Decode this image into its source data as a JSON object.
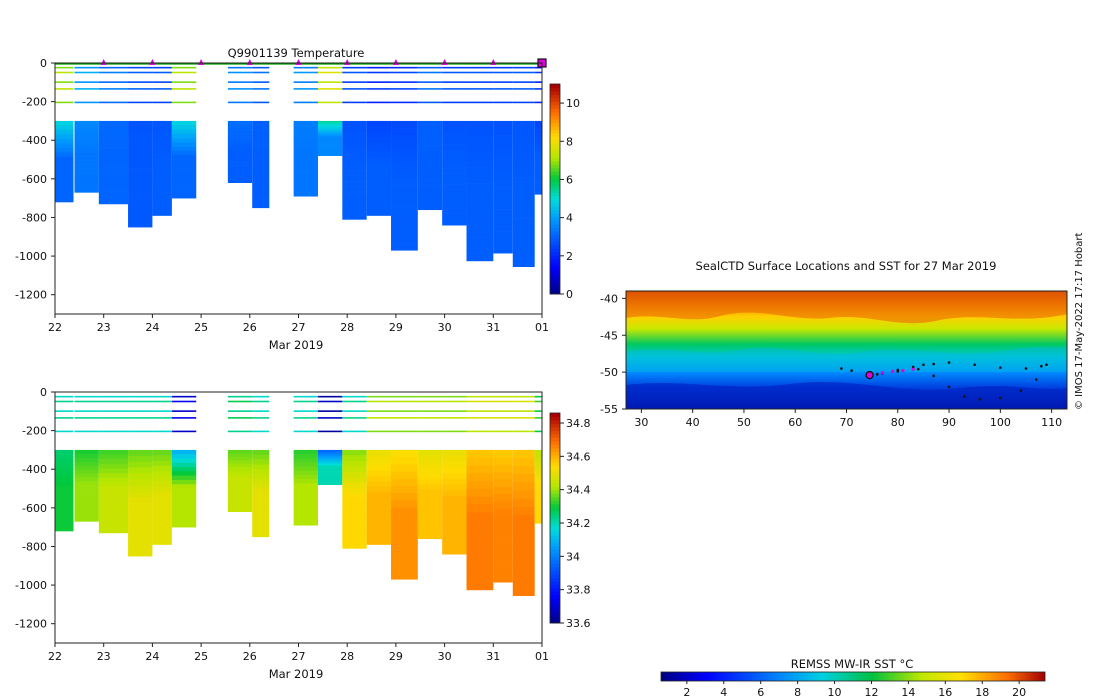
{
  "chart_data": [
    {
      "type": "heatmap",
      "title": "Q9901139  Temperature",
      "xlabel": "Mar 2019",
      "xticks": [
        "22",
        "23",
        "24",
        "25",
        "26",
        "27",
        "28",
        "29",
        "30",
        "31",
        "01"
      ],
      "xlim": [
        22,
        32
      ],
      "ylim": [
        -1300,
        0
      ],
      "yticks": [
        0,
        -200,
        -400,
        -600,
        -800,
        -1000,
        -1200
      ],
      "colorbar": {
        "ticks": [
          0,
          2,
          4,
          6,
          8,
          10
        ],
        "range": [
          0,
          11
        ]
      },
      "profiles": [
        {
          "day": 22.0,
          "width": 0.38,
          "max_depth": 720,
          "deep_value": 3.0,
          "surface_value": 7.0
        },
        {
          "day": 22.4,
          "width": 0.5,
          "max_depth": 670,
          "deep_value": 3.3,
          "surface_value": 4.0
        },
        {
          "day": 22.9,
          "width": 0.6,
          "max_depth": 730,
          "deep_value": 3.0,
          "surface_value": 3.2
        },
        {
          "day": 23.5,
          "width": 0.5,
          "max_depth": 850,
          "deep_value": 2.8,
          "surface_value": 2.7
        },
        {
          "day": 24.0,
          "width": 0.4,
          "max_depth": 790,
          "deep_value": 2.9,
          "surface_value": 2.6
        },
        {
          "day": 24.4,
          "width": 0.5,
          "max_depth": 700,
          "deep_value": 3.0,
          "surface_value": 7.0
        },
        {
          "day": 25.55,
          "width": 0.5,
          "max_depth": 620,
          "deep_value": 2.9,
          "surface_value": 3.5
        },
        {
          "day": 26.05,
          "width": 0.35,
          "max_depth": 750,
          "deep_value": 2.9,
          "surface_value": 3.0
        },
        {
          "day": 26.9,
          "width": 0.5,
          "max_depth": 690,
          "deep_value": 3.3,
          "surface_value": 3.6
        },
        {
          "day": 27.4,
          "width": 0.5,
          "max_depth": 480,
          "deep_value": 3.6,
          "surface_value": 7.5
        },
        {
          "day": 27.9,
          "width": 0.5,
          "max_depth": 810,
          "deep_value": 2.9,
          "surface_value": 2.5
        },
        {
          "day": 28.4,
          "width": 0.5,
          "max_depth": 790,
          "deep_value": 2.9,
          "surface_value": 2.0
        },
        {
          "day": 28.9,
          "width": 0.55,
          "max_depth": 970,
          "deep_value": 2.9,
          "surface_value": 2.2
        },
        {
          "day": 29.45,
          "width": 0.5,
          "max_depth": 760,
          "deep_value": 2.9,
          "surface_value": 3.0
        },
        {
          "day": 29.95,
          "width": 0.5,
          "max_depth": 840,
          "deep_value": 2.9,
          "surface_value": 2.5
        },
        {
          "day": 30.45,
          "width": 0.55,
          "max_depth": 1025,
          "deep_value": 2.9,
          "surface_value": 2.5
        },
        {
          "day": 31.0,
          "width": 0.4,
          "max_depth": 985,
          "deep_value": 2.9,
          "surface_value": 2.5
        },
        {
          "day": 31.4,
          "width": 0.45,
          "max_depth": 1055,
          "deep_value": 2.9,
          "surface_value": 2.6
        },
        {
          "day": 31.85,
          "width": 0.2,
          "max_depth": 680,
          "deep_value": 2.9,
          "surface_value": 2.0
        }
      ],
      "marker_days": [
        23,
        24,
        25,
        26,
        27,
        28,
        29,
        30,
        31
      ],
      "current_day": 32
    },
    {
      "type": "heatmap",
      "title": "",
      "xlabel": "Mar 2019",
      "xticks": [
        "22",
        "23",
        "24",
        "25",
        "26",
        "27",
        "28",
        "29",
        "30",
        "31",
        "01"
      ],
      "xlim": [
        22,
        32
      ],
      "ylim": [
        -1300,
        0
      ],
      "yticks": [
        0,
        -200,
        -400,
        -600,
        -800,
        -1000,
        -1200
      ],
      "colorbar": {
        "ticks": [
          33.6,
          33.8,
          34,
          34.2,
          34.4,
          34.6,
          34.8
        ],
        "range": [
          33.6,
          34.86
        ]
      },
      "profiles": [
        {
          "day": 22.0,
          "width": 0.38,
          "max_depth": 720,
          "deep_value": 34.3,
          "surface_value": 34.2
        },
        {
          "day": 22.4,
          "width": 0.5,
          "max_depth": 670,
          "deep_value": 34.4,
          "surface_value": 34.2
        },
        {
          "day": 22.9,
          "width": 0.6,
          "max_depth": 730,
          "deep_value": 34.45,
          "surface_value": 34.2
        },
        {
          "day": 23.5,
          "width": 0.5,
          "max_depth": 850,
          "deep_value": 34.5,
          "surface_value": 34.2
        },
        {
          "day": 24.0,
          "width": 0.4,
          "max_depth": 790,
          "deep_value": 34.5,
          "surface_value": 34.2
        },
        {
          "day": 24.4,
          "width": 0.5,
          "max_depth": 700,
          "deep_value": 34.42,
          "surface_value": 33.7
        },
        {
          "day": 25.55,
          "width": 0.5,
          "max_depth": 620,
          "deep_value": 34.45,
          "surface_value": 34.25
        },
        {
          "day": 26.05,
          "width": 0.35,
          "max_depth": 750,
          "deep_value": 34.5,
          "surface_value": 34.2
        },
        {
          "day": 26.9,
          "width": 0.5,
          "max_depth": 690,
          "deep_value": 34.42,
          "surface_value": 34.2
        },
        {
          "day": 27.4,
          "width": 0.5,
          "max_depth": 480,
          "deep_value": 34.2,
          "surface_value": 33.65
        },
        {
          "day": 27.9,
          "width": 0.5,
          "max_depth": 810,
          "deep_value": 34.55,
          "surface_value": 34.2
        },
        {
          "day": 28.4,
          "width": 0.5,
          "max_depth": 790,
          "deep_value": 34.6,
          "surface_value": 34.4
        },
        {
          "day": 28.9,
          "width": 0.55,
          "max_depth": 970,
          "deep_value": 34.65,
          "surface_value": 34.4
        },
        {
          "day": 29.45,
          "width": 0.5,
          "max_depth": 760,
          "deep_value": 34.58,
          "surface_value": 34.4
        },
        {
          "day": 29.95,
          "width": 0.5,
          "max_depth": 840,
          "deep_value": 34.6,
          "surface_value": 34.4
        },
        {
          "day": 30.45,
          "width": 0.55,
          "max_depth": 1025,
          "deep_value": 34.68,
          "surface_value": 34.45
        },
        {
          "day": 31.0,
          "width": 0.4,
          "max_depth": 985,
          "deep_value": 34.67,
          "surface_value": 34.45
        },
        {
          "day": 31.4,
          "width": 0.45,
          "max_depth": 1055,
          "deep_value": 34.68,
          "surface_value": 34.45
        },
        {
          "day": 31.85,
          "width": 0.2,
          "max_depth": 680,
          "deep_value": 34.55,
          "surface_value": 34.3
        }
      ],
      "marker_days": [],
      "current_day": 32
    },
    {
      "type": "heatmap",
      "title": "SealCTD Surface Locations and SST for 27 Mar 2019",
      "xticks": [
        30,
        40,
        50,
        60,
        70,
        80,
        90,
        100,
        110
      ],
      "yticks": [
        -40,
        -45,
        -50,
        -55
      ],
      "xlim": [
        27,
        113
      ],
      "ylim": [
        -55,
        -39
      ],
      "track": [
        [
          69,
          -49.5
        ],
        [
          71,
          -49.8
        ],
        [
          74,
          -50.3
        ],
        [
          77,
          -50.2
        ],
        [
          80,
          -49.7
        ],
        [
          83,
          -49.3
        ],
        [
          85,
          -49.0
        ],
        [
          87,
          -48.9
        ],
        [
          90,
          -48.7
        ],
        [
          95,
          -49.0
        ],
        [
          100,
          -49.4
        ],
        [
          105,
          -49.5
        ],
        [
          108,
          -49.2
        ],
        [
          109,
          -49.0
        ],
        [
          107,
          -51.0
        ],
        [
          104,
          -52.5
        ],
        [
          100,
          -53.5
        ],
        [
          96,
          -53.7
        ],
        [
          93,
          -53.3
        ],
        [
          90,
          -52.0
        ],
        [
          87,
          -50.5
        ],
        [
          84,
          -49.6
        ],
        [
          80,
          -49.9
        ],
        [
          76,
          -50.3
        ],
        [
          74,
          -50.4
        ]
      ],
      "recent_track": [
        [
          75,
          -50.3
        ],
        [
          77,
          -50.1
        ],
        [
          79,
          -49.9
        ],
        [
          81,
          -49.8
        ],
        [
          83,
          -49.6
        ]
      ],
      "current_position": [
        74.5,
        -50.4
      ],
      "colorbar": {
        "label": "REMSS MW-IR SST °C",
        "ticks": [
          2,
          4,
          6,
          8,
          10,
          12,
          14,
          16,
          18,
          20
        ],
        "range": [
          0.6,
          21.4
        ]
      }
    }
  ],
  "credit": "© IMOS 17-May-2022 17:17 Hobart"
}
